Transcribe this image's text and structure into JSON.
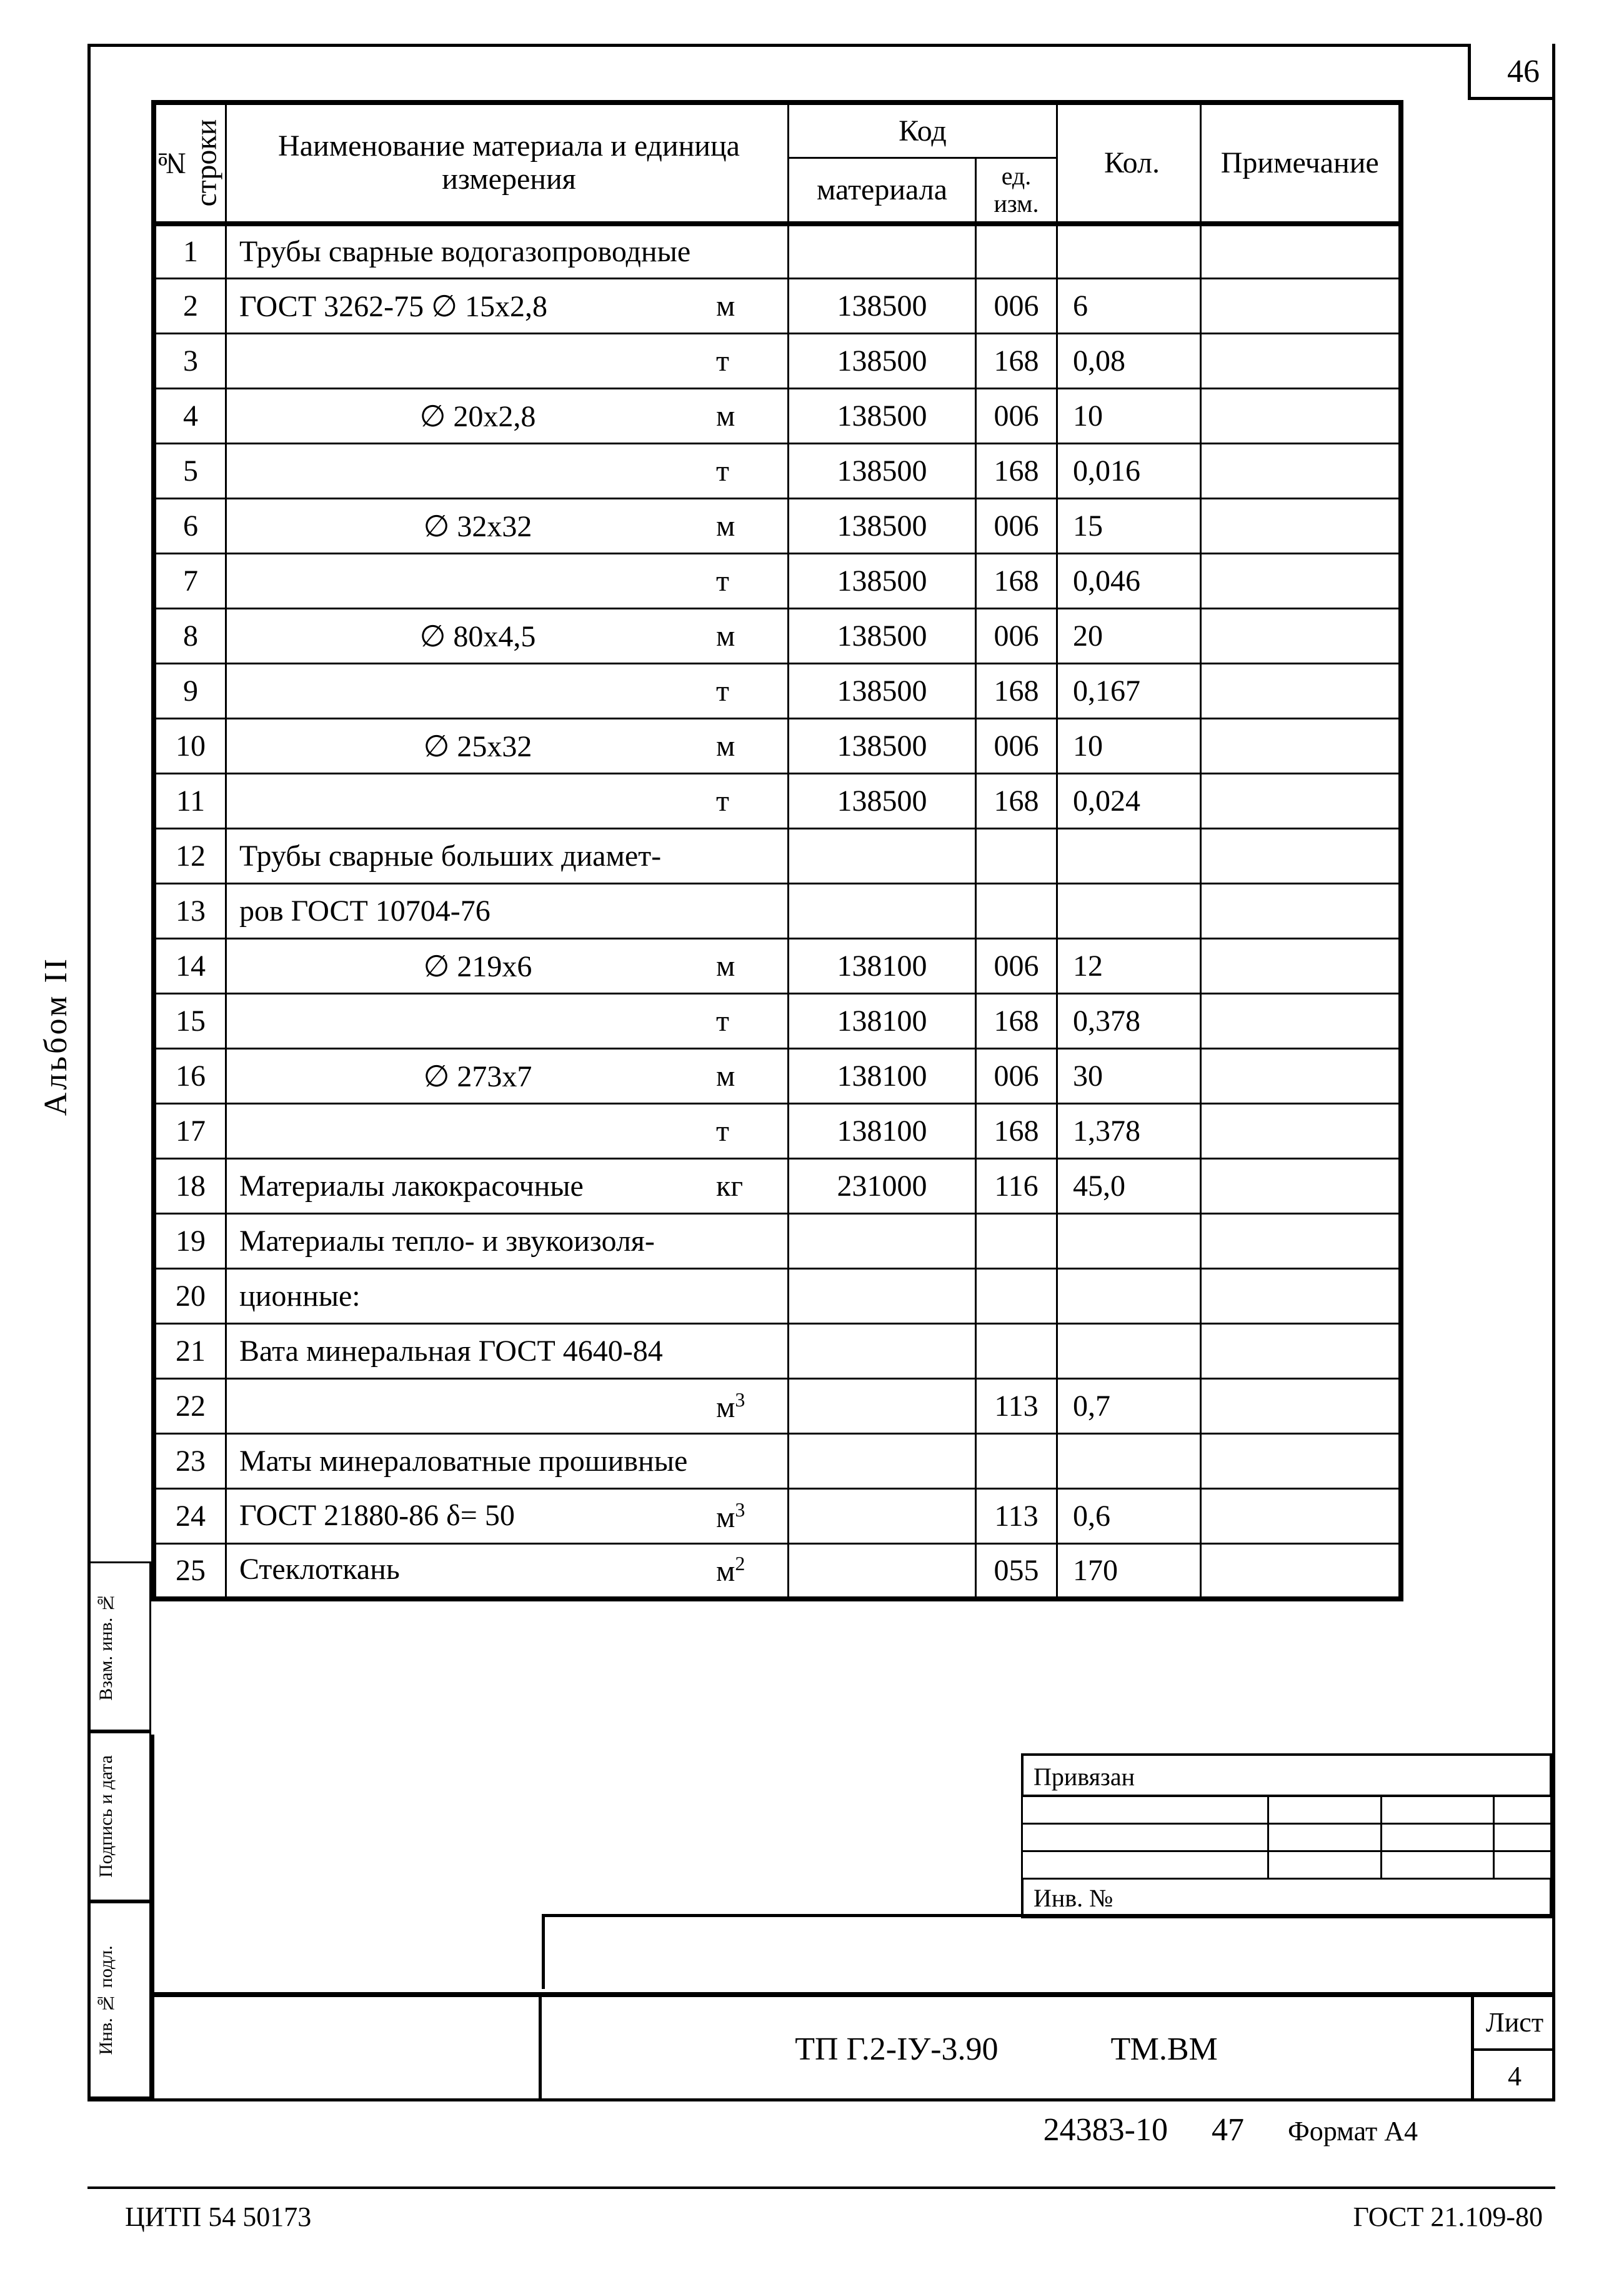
{
  "page_number": "46",
  "album_label": "Альбом II",
  "headers": {
    "row_no": "№ строки",
    "name": "Наименование материала  и единица измерения",
    "code": "Код",
    "mat_code": "материала",
    "unit_code": "ед. изм.",
    "qty": "Кол.",
    "note": "Примечание"
  },
  "rows": [
    {
      "n": "1",
      "name": "Трубы сварные водогазопроводные",
      "unit": "",
      "mat": "",
      "ucode": "",
      "qty": "",
      "note": ""
    },
    {
      "n": "2",
      "name": "ГОСТ 3262-75 ∅ 15х2,8",
      "unit": "м",
      "mat": "138500",
      "ucode": "006",
      "qty": "6",
      "note": ""
    },
    {
      "n": "3",
      "name": "",
      "unit": "т",
      "mat": "138500",
      "ucode": "168",
      "qty": "0,08",
      "note": ""
    },
    {
      "n": "4",
      "name": "∅ 20х2,8",
      "name_pad": "center",
      "unit": "м",
      "mat": "138500",
      "ucode": "006",
      "qty": "10",
      "note": ""
    },
    {
      "n": "5",
      "name": "",
      "unit": "т",
      "mat": "138500",
      "ucode": "168",
      "qty": "0,016",
      "note": ""
    },
    {
      "n": "6",
      "name": "∅ 32х32",
      "name_pad": "center",
      "unit": "м",
      "mat": "138500",
      "ucode": "006",
      "qty": "15",
      "note": ""
    },
    {
      "n": "7",
      "name": "",
      "unit": "т",
      "mat": "138500",
      "ucode": "168",
      "qty": "0,046",
      "note": ""
    },
    {
      "n": "8",
      "name": "∅ 80х4,5",
      "name_pad": "center",
      "unit": "м",
      "mat": "138500",
      "ucode": "006",
      "qty": "20",
      "note": ""
    },
    {
      "n": "9",
      "name": "",
      "unit": "т",
      "mat": "138500",
      "ucode": "168",
      "qty": "0,167",
      "note": ""
    },
    {
      "n": "10",
      "name": "∅ 25х32",
      "name_pad": "center",
      "unit": "м",
      "mat": "138500",
      "ucode": "006",
      "qty": "10",
      "note": ""
    },
    {
      "n": "11",
      "name": "",
      "unit": "т",
      "mat": "138500",
      "ucode": "168",
      "qty": "0,024",
      "note": ""
    },
    {
      "n": "12",
      "name": "Трубы сварные больших диамет-",
      "unit": "",
      "mat": "",
      "ucode": "",
      "qty": "",
      "note": ""
    },
    {
      "n": "13",
      "name": "ров ГОСТ 10704-76",
      "unit": "",
      "mat": "",
      "ucode": "",
      "qty": "",
      "note": ""
    },
    {
      "n": "14",
      "name": "∅ 219х6",
      "name_pad": "center",
      "unit": "м",
      "mat": "138100",
      "ucode": "006",
      "qty": "12",
      "note": ""
    },
    {
      "n": "15",
      "name": "",
      "unit": "т",
      "mat": "138100",
      "ucode": "168",
      "qty": "0,378",
      "note": ""
    },
    {
      "n": "16",
      "name": "∅ 273х7",
      "name_pad": "center",
      "unit": "м",
      "mat": "138100",
      "ucode": "006",
      "qty": "30",
      "note": ""
    },
    {
      "n": "17",
      "name": "",
      "unit": "т",
      "mat": "138100",
      "ucode": "168",
      "qty": "1,378",
      "note": ""
    },
    {
      "n": "18",
      "name": "Материалы лакокрасочные",
      "unit": "кг",
      "mat": "231000",
      "ucode": "116",
      "qty": "45,0",
      "note": ""
    },
    {
      "n": "19",
      "name": "Материалы тепло- и звукоизоля-",
      "unit": "",
      "mat": "",
      "ucode": "",
      "qty": "",
      "note": ""
    },
    {
      "n": "20",
      "name": "ционные:",
      "unit": "",
      "mat": "",
      "ucode": "",
      "qty": "",
      "note": ""
    },
    {
      "n": "21",
      "name": "Вата минеральная ГОСТ 4640-84",
      "unit": "",
      "mat": "",
      "ucode": "",
      "qty": "",
      "note": ""
    },
    {
      "n": "22",
      "name": "",
      "unit": "м",
      "sup": "3",
      "mat": "",
      "ucode": "113",
      "qty": "0,7",
      "note": ""
    },
    {
      "n": "23",
      "name": "Маты минераловатные прошивные",
      "unit": "",
      "mat": "",
      "ucode": "",
      "qty": "",
      "note": ""
    },
    {
      "n": "24",
      "name": "ГОСТ 21880-86  δ= 50",
      "unit": "м",
      "sup": "3",
      "mat": "",
      "ucode": "113",
      "qty": "0,6",
      "note": ""
    },
    {
      "n": "25",
      "name": "Стеклоткань",
      "unit": "м",
      "sup": "2",
      "mat": "",
      "ucode": "055",
      "qty": "170",
      "note": ""
    }
  ],
  "side_boxes": {
    "b1": "Взам. инв. №",
    "b2": "Подпись и дата",
    "b3": "Инв. № подл."
  },
  "priv": {
    "header": "Привязан",
    "inv": "Инв. №"
  },
  "title_block": {
    "code": "ТП Г.2-IУ-3.90",
    "doc": "ТМ.ВМ",
    "sheet_label": "Лист",
    "sheet_no": "4"
  },
  "footer": {
    "stamp": "24383-10",
    "stamp2": "47",
    "format": "Формат А4",
    "left": "ЦИТП 54 50173",
    "right": "ГОСТ 21.109-80"
  }
}
